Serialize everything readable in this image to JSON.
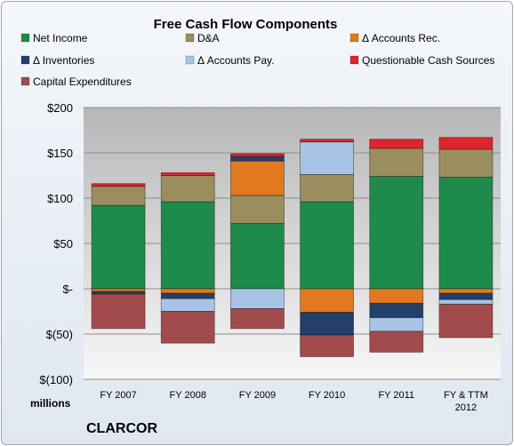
{
  "chart_data": {
    "type": "bar",
    "stacked": true,
    "title": "Free Cash Flow Components",
    "units_label": "millions",
    "company": "CLARCOR",
    "categories": [
      "FY 2007",
      "FY 2008",
      "FY 2009",
      "FY 2010",
      "FY 2011",
      "FY & TTM\n2012"
    ],
    "ylim": [
      -100,
      200
    ],
    "yticks": [
      200,
      150,
      100,
      50,
      0,
      -50,
      -100
    ],
    "ytick_labels": [
      "$200",
      "$150",
      "$100",
      "$50",
      "$-",
      "$(50)",
      "$(100)"
    ],
    "grid": true,
    "legend_position": "top",
    "series": [
      {
        "name": "Net Income",
        "color": "#1e8a4c",
        "values": [
          92,
          96,
          72,
          96,
          124,
          123
        ]
      },
      {
        "name": "D&A",
        "color": "#9a8e5f",
        "values": [
          21,
          29,
          31,
          30,
          31,
          31
        ]
      },
      {
        "name": "Δ Accounts Rec.",
        "color": "#e2781f",
        "values": [
          -3,
          -5,
          38,
          -26,
          -16,
          -5
        ]
      },
      {
        "name": "Δ Inventories",
        "color": "#24406a",
        "values": [
          -3,
          -6,
          5,
          -25,
          -16,
          -7
        ]
      },
      {
        "name": "Δ Accounts Pay.",
        "color": "#a9c3e4",
        "values": [
          0,
          -14,
          -22,
          36,
          -15,
          -5
        ]
      },
      {
        "name": "Questionable Cash Sources",
        "color": "#e0242b",
        "values": [
          3,
          3,
          3,
          3,
          10,
          13
        ]
      },
      {
        "name": "Capital Expenditures",
        "color": "#a24b4d",
        "values": [
          -38,
          -35,
          -22,
          -24,
          -23,
          -37
        ]
      }
    ]
  }
}
